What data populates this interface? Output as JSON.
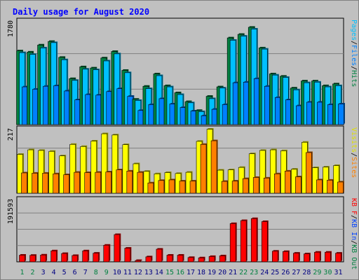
{
  "chart_data": {
    "type": "bar",
    "title": "Daily usage for August 2020",
    "categories": [
      "1",
      "2",
      "3",
      "4",
      "5",
      "6",
      "7",
      "8",
      "9",
      "10",
      "11",
      "12",
      "13",
      "14",
      "15",
      "16",
      "17",
      "18",
      "19",
      "20",
      "21",
      "22",
      "23",
      "24",
      "25",
      "26",
      "27",
      "28",
      "29",
      "30",
      "31"
    ],
    "weekend_days": [
      "1",
      "2",
      "8",
      "9",
      "15",
      "16",
      "22",
      "23",
      "29",
      "30"
    ],
    "panels": [
      {
        "name": "top",
        "max_label": "1780",
        "ymax": 1780,
        "series": [
          {
            "name": "Hits",
            "color": "#008040",
            "values": [
              1250,
              1230,
              1350,
              1410,
              1140,
              780,
              980,
              960,
              1130,
              1240,
              920,
              430,
              650,
              860,
              660,
              540,
              390,
              240,
              480,
              640,
              1470,
              1530,
              1650,
              1300,
              860,
              820,
              620,
              740,
              740,
              660,
              690
            ]
          },
          {
            "name": "Files",
            "color": "#00c0ff",
            "values": [
              1220,
              1190,
              1300,
              1390,
              1100,
              750,
              940,
              930,
              1080,
              1200,
              880,
              410,
              610,
              830,
              640,
              510,
              370,
              220,
              440,
              620,
              1430,
              1500,
              1620,
              1280,
              840,
              800,
              590,
              710,
              720,
              640,
              660
            ]
          },
          {
            "name": "Pages",
            "color": "#0080ff",
            "values": [
              640,
              600,
              650,
              660,
              570,
              420,
              510,
              500,
              560,
              610,
              480,
              240,
              340,
              440,
              350,
              290,
              230,
              150,
              260,
              340,
              710,
              720,
              780,
              650,
              460,
              420,
              320,
              380,
              380,
              340,
              350
            ]
          }
        ],
        "legend": [
          {
            "text": "Pages",
            "color": "#00c0ff"
          },
          {
            "text": "/",
            "color": "#000000"
          },
          {
            "text": "Files",
            "color": "#0080ff"
          },
          {
            "text": "/",
            "color": "#000000"
          },
          {
            "text": "Hits",
            "color": "#008040"
          }
        ]
      },
      {
        "name": "middle",
        "max_label": "217",
        "ymax": 217,
        "series": [
          {
            "name": "Visits",
            "color": "#ffff00",
            "values": [
              128,
              143,
              141,
              138,
              123,
              161,
              154,
              172,
              196,
              192,
              160,
              97,
              72,
              64,
              68,
              65,
              69,
              171,
              211,
              76,
              77,
              85,
              130,
              141,
              143,
              140,
              79,
              168,
              84,
              86,
              91
            ]
          },
          {
            "name": "Sites",
            "color": "#ff8000",
            "values": [
              67,
              66,
              66,
              64,
              61,
              69,
              68,
              69,
              70,
              77,
              73,
              69,
              34,
              42,
              44,
              40,
              40,
              161,
              173,
              39,
              40,
              48,
              52,
              50,
              64,
              73,
              54,
              134,
              44,
              43,
              37
            ]
          }
        ],
        "legend": [
          {
            "text": "Visits",
            "color": "#e0e000"
          },
          {
            "text": "/",
            "color": "#000000"
          },
          {
            "text": "Sites",
            "color": "#ff8000"
          }
        ]
      },
      {
        "name": "bottom",
        "max_label": "191593",
        "ymax": 191593,
        "series": [
          {
            "name": "KB Out",
            "color": "#ff0000",
            "values": [
              20000,
              19500,
              20500,
              33000,
              25000,
              19000,
              33000,
              26000,
              50000,
              82000,
              41000,
              4000,
              15000,
              38000,
              20000,
              20000,
              13000,
              12000,
              16000,
              18000,
              115000,
              124000,
              130000,
              121000,
              32000,
              31000,
              26000,
              24000,
              29000,
              29000,
              26000
            ]
          }
        ],
        "legend": [
          {
            "text": "KB F",
            "color": "#ff0000"
          },
          {
            "text": "/",
            "color": "#000000"
          },
          {
            "text": "KB In",
            "color": "#0040ff"
          },
          {
            "text": "/",
            "color": "#000000"
          },
          {
            "text": "KB Out",
            "color": "#008040"
          }
        ]
      }
    ]
  }
}
